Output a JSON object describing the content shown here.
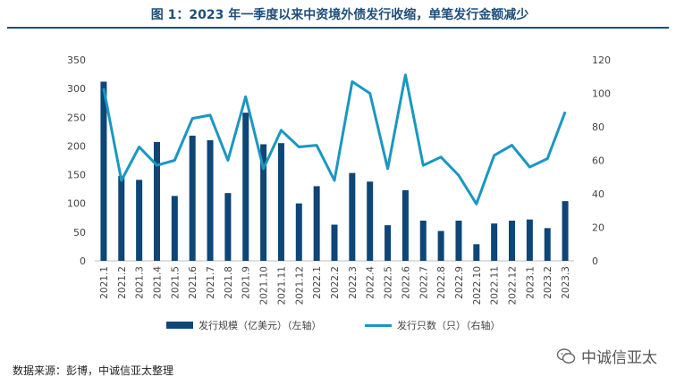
{
  "header": {
    "title": "图 1：2023 年一季度以来中资境外债发行收缩，单笔发行金额减少"
  },
  "chart_data": {
    "type": "bar+line",
    "title": "图 1：2023 年一季度以来中资境外债发行收缩，单笔发行金额减少",
    "categories": [
      "2021.1",
      "2021.2",
      "2021.3",
      "2021.4",
      "2021.5",
      "2021.6",
      "2021.7",
      "2021.8",
      "2021.9",
      "2021.10",
      "2021.11",
      "2021.12",
      "2022.1",
      "2022.2",
      "2022.3",
      "2022.4",
      "2022.5",
      "2022.6",
      "2022.7",
      "2022.8",
      "2022.9",
      "2022.10",
      "2022.11",
      "2022.12",
      "2023.1",
      "2023.2",
      "2023.3"
    ],
    "series": [
      {
        "name": "发行规模（亿美元）（左轴）",
        "type": "bar",
        "axis": "left",
        "color": "#0d4677",
        "values": [
          312,
          148,
          141,
          207,
          113,
          218,
          210,
          118,
          258,
          203,
          205,
          100,
          130,
          63,
          153,
          138,
          62,
          123,
          70,
          52,
          70,
          29,
          65,
          70,
          72,
          57,
          104
        ]
      },
      {
        "name": "发行只数（只）（右轴）",
        "type": "line",
        "axis": "right",
        "color": "#1a97c1",
        "values": [
          103,
          48,
          68,
          57,
          60,
          85,
          87,
          60,
          98,
          55,
          78,
          68,
          69,
          48,
          107,
          100,
          55,
          111,
          57,
          62,
          51,
          34,
          63,
          69,
          56,
          61,
          89
        ]
      }
    ],
    "y_left": {
      "min": 0,
      "max": 350,
      "ticks": [
        0,
        50,
        100,
        150,
        200,
        250,
        300,
        350
      ]
    },
    "y_right": {
      "min": 0,
      "max": 120,
      "ticks": [
        0,
        20,
        40,
        60,
        80,
        100,
        120
      ]
    },
    "grid": false,
    "legend": "bottom"
  },
  "legend": {
    "bar_label": "发行规模（亿美元）（左轴）",
    "line_label": "发行只数（只）（右轴）"
  },
  "footer": {
    "source": "数据来源：彭博，中诚信亚太整理",
    "watermark": "中诚信亚太"
  }
}
